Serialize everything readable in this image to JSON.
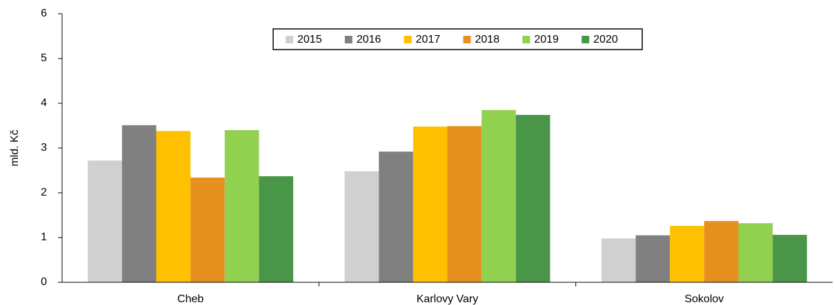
{
  "chart_data": {
    "type": "bar",
    "y_label": "mld. Kč",
    "categories": [
      "Cheb",
      "Karlovy Vary",
      "Sokolov"
    ],
    "series": [
      {
        "name": "2015",
        "color": "#d0d0d0",
        "values": [
          2.72,
          2.48,
          0.98
        ]
      },
      {
        "name": "2016",
        "color": "#808080",
        "values": [
          3.51,
          2.92,
          1.05
        ]
      },
      {
        "name": "2017",
        "color": "#ffc000",
        "values": [
          3.38,
          3.48,
          1.26
        ]
      },
      {
        "name": "2018",
        "color": "#e69020",
        "values": [
          2.34,
          3.49,
          1.37
        ]
      },
      {
        "name": "2019",
        "color": "#92d050",
        "values": [
          3.4,
          3.85,
          1.32
        ]
      },
      {
        "name": "2020",
        "color": "#4a9648",
        "values": [
          2.37,
          3.74,
          1.06
        ]
      }
    ],
    "ylim": [
      0,
      6
    ],
    "yticks": [
      0,
      1,
      2,
      3,
      4,
      5,
      6
    ],
    "legend": "top"
  }
}
